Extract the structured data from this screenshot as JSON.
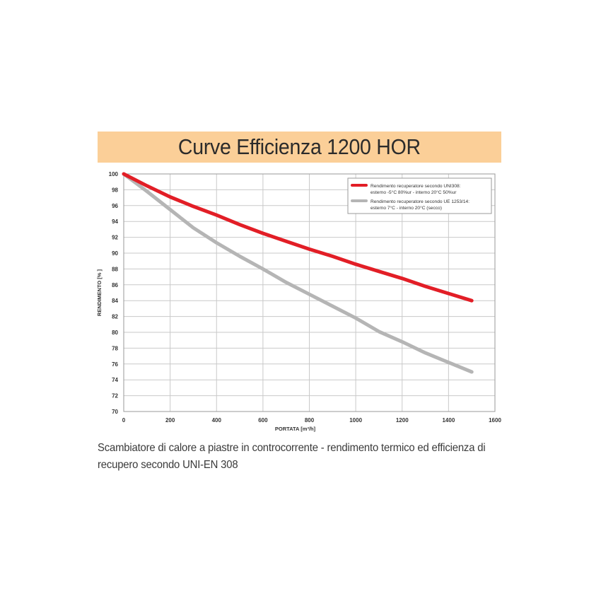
{
  "title": "Curve Efficienza 1200 HOR",
  "caption": {
    "line1": "Scambiatore di calore a piastre in controcorrente - rendimento termico ed efficienza di",
    "line2": "recupero secondo UNI-EN 308"
  },
  "chart_data": {
    "type": "line",
    "title": "Curve Efficienza 1200 HOR",
    "xlabel": "PORTATA [m³/h]",
    "ylabel": "RENDIMENTO [% ]",
    "xlim": [
      0,
      1600
    ],
    "ylim": [
      70,
      100
    ],
    "x_ticks": [
      0,
      200,
      400,
      600,
      800,
      1000,
      1200,
      1400,
      1600
    ],
    "y_ticks": [
      70,
      72,
      74,
      76,
      78,
      80,
      82,
      84,
      86,
      88,
      90,
      92,
      94,
      96,
      98,
      100
    ],
    "grid": true,
    "legend_position": "top-right",
    "series": [
      {
        "name": "Rendimento recuperatore secondo UNI308: esterno -5°C 80%ur - interno 20°C 50%ur",
        "legend_lines": [
          "Rendimento recuperatore secondo UNI308:",
          "esterno -5°C 80%ur - interno 20°C 50%ur"
        ],
        "color": "#e21e26",
        "x": [
          0,
          100,
          200,
          300,
          400,
          500,
          600,
          700,
          800,
          900,
          1000,
          1100,
          1200,
          1300,
          1400,
          1500
        ],
        "values": [
          100,
          98.5,
          97.1,
          95.9,
          94.8,
          93.6,
          92.5,
          91.5,
          90.5,
          89.6,
          88.6,
          87.7,
          86.8,
          85.8,
          84.9,
          84.0
        ]
      },
      {
        "name": "Rendimento recuperatore secondo UE 1253/14: esterno 7°C - interno 20°C (secco)",
        "legend_lines": [
          "Rendimento recuperatore secondo UE 1253/14:",
          "esterno 7°C - interno 20°C (secco)"
        ],
        "color": "#b5b5b5",
        "x": [
          0,
          100,
          200,
          300,
          400,
          500,
          600,
          700,
          800,
          900,
          1000,
          1100,
          1200,
          1300,
          1400,
          1500
        ],
        "values": [
          100,
          97.8,
          95.5,
          93.2,
          91.3,
          89.6,
          88.0,
          86.3,
          84.8,
          83.3,
          81.8,
          80.1,
          78.8,
          77.4,
          76.2,
          75.0
        ]
      }
    ]
  }
}
